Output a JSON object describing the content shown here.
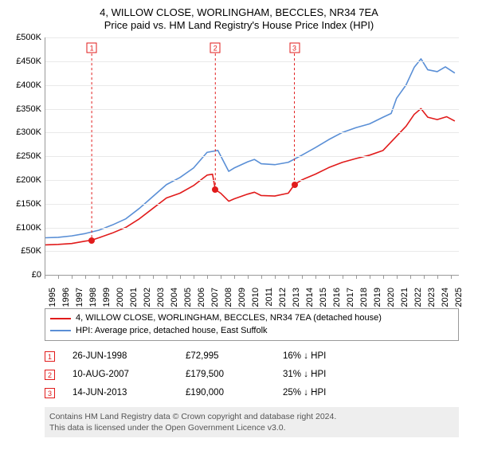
{
  "title": "4, WILLOW CLOSE, WORLINGHAM, BECCLES, NR34 7EA",
  "subtitle": "Price paid vs. HM Land Registry's House Price Index (HPI)",
  "chart": {
    "type": "line",
    "background_color": "#ffffff",
    "grid_color": "#e9e9e9",
    "axis_color": "#999999",
    "text_color": "#000000",
    "font_size": 11,
    "x": {
      "min": 1995,
      "max": 2025.6,
      "ticks": [
        1995,
        1996,
        1997,
        1998,
        1999,
        2000,
        2001,
        2002,
        2003,
        2004,
        2005,
        2006,
        2007,
        2008,
        2009,
        2010,
        2011,
        2012,
        2013,
        2014,
        2015,
        2016,
        2017,
        2018,
        2019,
        2020,
        2021,
        2022,
        2023,
        2024,
        2025
      ],
      "tick_labels": [
        "1995",
        "1996",
        "1997",
        "1998",
        "1999",
        "2000",
        "2001",
        "2002",
        "2003",
        "2004",
        "2005",
        "2006",
        "2007",
        "2008",
        "2009",
        "2010",
        "2011",
        "2012",
        "2013",
        "2014",
        "2015",
        "2016",
        "2017",
        "2018",
        "2019",
        "2020",
        "2021",
        "2022",
        "2023",
        "2024",
        "2025"
      ]
    },
    "y": {
      "min": 0,
      "max": 500000,
      "ticks": [
        0,
        50000,
        100000,
        150000,
        200000,
        250000,
        300000,
        350000,
        400000,
        450000,
        500000
      ],
      "tick_labels": [
        "£0",
        "£50K",
        "£100K",
        "£150K",
        "£200K",
        "£250K",
        "£300K",
        "£350K",
        "£400K",
        "£450K",
        "£500K"
      ]
    },
    "series": [
      {
        "id": "hpi",
        "label": "HPI: Average price, detached house, East Suffolk",
        "color": "#5a8fd6",
        "width": 1.6,
        "points": [
          [
            1995,
            78000
          ],
          [
            1996,
            79000
          ],
          [
            1997,
            82000
          ],
          [
            1998,
            87000
          ],
          [
            1999,
            94000
          ],
          [
            2000,
            105000
          ],
          [
            2001,
            118000
          ],
          [
            2002,
            140000
          ],
          [
            2003,
            165000
          ],
          [
            2004,
            190000
          ],
          [
            2005,
            205000
          ],
          [
            2006,
            225000
          ],
          [
            2007,
            258000
          ],
          [
            2007.8,
            262000
          ],
          [
            2008.6,
            218000
          ],
          [
            2009,
            225000
          ],
          [
            2010,
            238000
          ],
          [
            2010.5,
            243000
          ],
          [
            2011,
            234000
          ],
          [
            2012,
            232000
          ],
          [
            2013,
            237000
          ],
          [
            2014,
            252000
          ],
          [
            2015,
            268000
          ],
          [
            2016,
            285000
          ],
          [
            2017,
            300000
          ],
          [
            2018,
            310000
          ],
          [
            2019,
            318000
          ],
          [
            2020,
            332000
          ],
          [
            2020.6,
            340000
          ],
          [
            2021,
            372000
          ],
          [
            2021.7,
            400000
          ],
          [
            2022.3,
            437000
          ],
          [
            2022.8,
            455000
          ],
          [
            2023.3,
            432000
          ],
          [
            2024,
            428000
          ],
          [
            2024.6,
            438000
          ],
          [
            2025.3,
            425000
          ]
        ]
      },
      {
        "id": "price_paid",
        "label": "4, WILLOW CLOSE, WORLINGHAM, BECCLES, NR34 7EA (detached house)",
        "color": "#e11b1b",
        "width": 1.6,
        "points": [
          [
            1995,
            63000
          ],
          [
            1996,
            64000
          ],
          [
            1997,
            66000
          ],
          [
            1998,
            71000
          ],
          [
            1998.48,
            72995
          ],
          [
            1999,
            78000
          ],
          [
            2000,
            88000
          ],
          [
            2001,
            100000
          ],
          [
            2002,
            118000
          ],
          [
            2003,
            140000
          ],
          [
            2004,
            162000
          ],
          [
            2005,
            172000
          ],
          [
            2006,
            188000
          ],
          [
            2007,
            210000
          ],
          [
            2007.4,
            212000
          ],
          [
            2007.61,
            179500
          ],
          [
            2008,
            172000
          ],
          [
            2008.6,
            155000
          ],
          [
            2009,
            160000
          ],
          [
            2010,
            170000
          ],
          [
            2010.5,
            174000
          ],
          [
            2011,
            167000
          ],
          [
            2012,
            166000
          ],
          [
            2013,
            172000
          ],
          [
            2013.45,
            190000
          ],
          [
            2014,
            200000
          ],
          [
            2015,
            212000
          ],
          [
            2016,
            226000
          ],
          [
            2017,
            237000
          ],
          [
            2018,
            245000
          ],
          [
            2019,
            252000
          ],
          [
            2020,
            262000
          ],
          [
            2021,
            292000
          ],
          [
            2021.7,
            313000
          ],
          [
            2022.3,
            338000
          ],
          [
            2022.8,
            350000
          ],
          [
            2023.3,
            332000
          ],
          [
            2024,
            327000
          ],
          [
            2024.7,
            333000
          ],
          [
            2025.3,
            324000
          ]
        ]
      }
    ],
    "sale_markers": [
      {
        "n": "1",
        "x": 1998.48,
        "y_top": 478000,
        "dot_y": 72995,
        "color": "#e11b1b"
      },
      {
        "n": "2",
        "x": 2007.61,
        "y_top": 478000,
        "dot_y": 179500,
        "color": "#e11b1b"
      },
      {
        "n": "3",
        "x": 2013.45,
        "y_top": 478000,
        "dot_y": 190000,
        "color": "#e11b1b"
      }
    ]
  },
  "legend": {
    "border_color": "#999999",
    "items": [
      {
        "color": "#e11b1b",
        "label": "4, WILLOW CLOSE, WORLINGHAM, BECCLES, NR34 7EA (detached house)"
      },
      {
        "color": "#5a8fd6",
        "label": "HPI: Average price, detached house, East Suffolk"
      }
    ]
  },
  "sales": [
    {
      "n": "1",
      "color": "#e11b1b",
      "date": "26-JUN-1998",
      "price": "£72,995",
      "delta": "16% ↓ HPI"
    },
    {
      "n": "2",
      "color": "#e11b1b",
      "date": "10-AUG-2007",
      "price": "£179,500",
      "delta": "31% ↓ HPI"
    },
    {
      "n": "3",
      "color": "#e11b1b",
      "date": "14-JUN-2013",
      "price": "£190,000",
      "delta": "25% ↓ HPI"
    }
  ],
  "footer_line1": "Contains HM Land Registry data © Crown copyright and database right 2024.",
  "footer_line2": "This data is licensed under the Open Government Licence v3.0.",
  "footer_bg": "#eeeeee",
  "footer_color": "#555555"
}
